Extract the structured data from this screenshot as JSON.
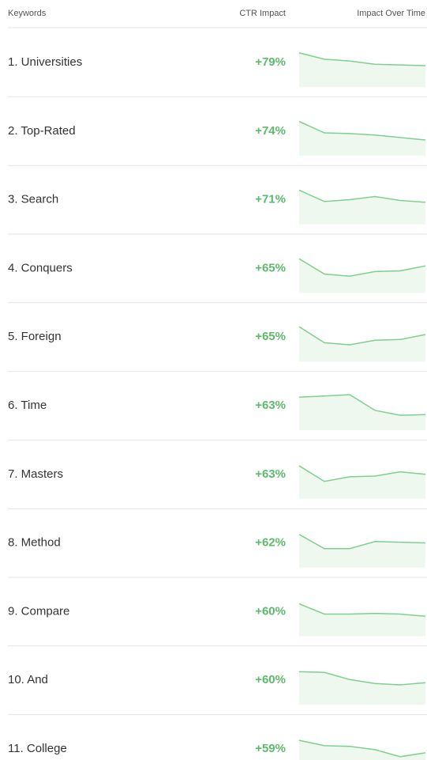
{
  "header": {
    "keyword": "Keywords",
    "impact": "CTR Impact",
    "trend": "Impact Over Time"
  },
  "trend_range": [
    0,
    100
  ],
  "rows": [
    {
      "keyword": "1. Universities",
      "impact": "+79%",
      "trend": [
        96,
        78,
        73,
        64,
        62,
        60
      ]
    },
    {
      "keyword": "2. Top-Rated",
      "impact": "+74%",
      "trend": [
        96,
        64,
        62,
        58,
        51,
        44
      ]
    },
    {
      "keyword": "3. Search",
      "impact": "+71%",
      "trend": [
        96,
        64,
        69,
        78,
        67,
        62
      ]
    },
    {
      "keyword": "4. Conquers",
      "impact": "+65%",
      "trend": [
        96,
        53,
        47,
        60,
        62,
        76
      ]
    },
    {
      "keyword": "5. Foreign",
      "impact": "+65%",
      "trend": [
        98,
        53,
        47,
        60,
        62,
        76
      ]
    },
    {
      "keyword": "6. Time",
      "impact": "+63%",
      "trend": [
        93,
        96,
        100,
        56,
        42,
        44
      ]
    },
    {
      "keyword": "7. Masters",
      "impact": "+63%",
      "trend": [
        93,
        49,
        62,
        64,
        76,
        69
      ]
    },
    {
      "keyword": "8. Method",
      "impact": "+62%",
      "trend": [
        93,
        53,
        53,
        73,
        71,
        69
      ]
    },
    {
      "keyword": "9. Compare",
      "impact": "+60%",
      "trend": [
        91,
        62,
        62,
        64,
        62,
        56
      ]
    },
    {
      "keyword": "10. And",
      "impact": "+60%",
      "trend": [
        93,
        91,
        71,
        60,
        56,
        62
      ]
    },
    {
      "keyword": "11. College",
      "impact": "+59%",
      "trend": [
        93,
        78,
        76,
        67,
        47,
        58
      ]
    }
  ]
}
